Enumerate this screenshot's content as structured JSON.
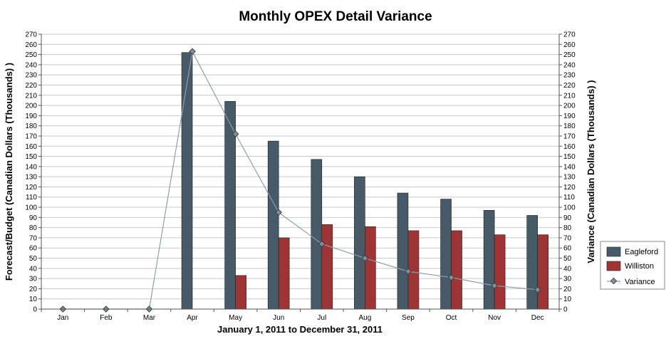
{
  "chart_data": {
    "type": "bar",
    "title": "Monthly OPEX Detail Variance",
    "xlabel": "January 1, 2011 to December 31, 2011",
    "ylabel": "Forecast/Budget (Canadian Dollars (Thousands) )",
    "y2label": "Variance (Canadian Dollars (Thousands) )",
    "ylim": [
      0,
      270
    ],
    "y2lim": [
      0,
      270
    ],
    "ytick_step": 10,
    "grid": true,
    "legend_position": "right",
    "categories": [
      "Jan",
      "Feb",
      "Mar",
      "Apr",
      "May",
      "Jun",
      "Jul",
      "Aug",
      "Sep",
      "Oct",
      "Nov",
      "Dec"
    ],
    "series": [
      {
        "name": "Eagleford",
        "type": "bar",
        "color": "#465a67",
        "values": [
          0,
          0,
          0,
          252,
          204,
          165,
          147,
          130,
          114,
          108,
          97,
          92
        ]
      },
      {
        "name": "Williston",
        "type": "bar",
        "color": "#9e3434",
        "values": [
          0,
          0,
          0,
          0,
          33,
          70,
          83,
          81,
          77,
          77,
          73,
          73
        ]
      },
      {
        "name": "Variance",
        "type": "line",
        "axis": "right",
        "color": "#8f9ea8",
        "marker_color": "#7f8c94",
        "values": [
          0,
          0,
          0,
          253,
          172,
          95,
          64,
          50,
          37,
          31,
          23,
          19
        ]
      }
    ]
  }
}
